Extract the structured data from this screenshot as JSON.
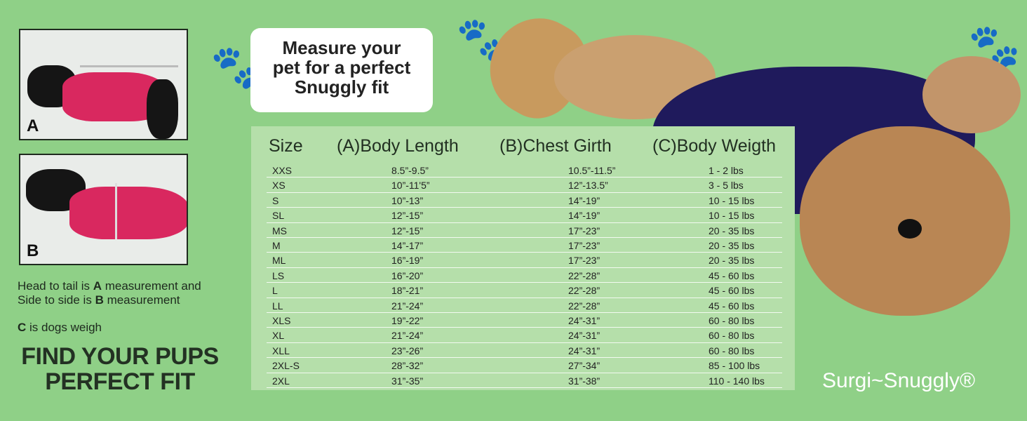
{
  "photos": [
    {
      "label": "A"
    },
    {
      "label": "B"
    }
  ],
  "instructions": {
    "line1_pre": "Head to tail is ",
    "line1_bold": "A",
    "line1_post": " measurement and",
    "line2_pre": "Side to side is ",
    "line2_bold": "B",
    "line2_post": " measurement",
    "line3_bold": "C",
    "line3_post": " is dogs weigh"
  },
  "headline": [
    "FIND YOUR PUPS",
    "PERFECT FIT"
  ],
  "bubble": [
    "Measure your",
    "pet for a perfect",
    "Snuggly fit"
  ],
  "table": {
    "headers": [
      "Size",
      "(A)Body Length",
      "(B)Chest Girth",
      "(C)Body Weigth"
    ],
    "rows": [
      [
        "XXS",
        "8.5”-9.5”",
        "10.5”-11.5”",
        "1 - 2 lbs"
      ],
      [
        "XS",
        "10”-11'5”",
        "12”-13.5”",
        "3 - 5 lbs"
      ],
      [
        "S",
        "10”-13”",
        "14”-19”",
        "10 - 15 lbs"
      ],
      [
        "SL",
        "12”-15”",
        "14”-19”",
        "10 - 15 lbs"
      ],
      [
        "MS",
        "12”-15”",
        "17”-23”",
        "20 - 35 lbs"
      ],
      [
        "M",
        "14”-17”",
        "17”-23”",
        "20 - 35 lbs"
      ],
      [
        "ML",
        "16”-19”",
        "17”-23”",
        "20 - 35 lbs"
      ],
      [
        "LS",
        "16”-20”",
        "22”-28”",
        "45 - 60 lbs"
      ],
      [
        "L",
        "18”-21”",
        "22”-28”",
        "45 - 60 lbs"
      ],
      [
        "LL",
        "21”-24”",
        "22”-28”",
        "45 - 60 lbs"
      ],
      [
        "XLS",
        "19”-22”",
        "24”-31”",
        "60 - 80 lbs"
      ],
      [
        "XL",
        "21”-24”",
        "24”-31”",
        "60 - 80 lbs"
      ],
      [
        "XLL",
        "23”-26”",
        "24”-31”",
        "60 - 80 lbs"
      ],
      [
        "2XL-S",
        "28”-32”",
        "27”-34”",
        "85 - 100 lbs"
      ],
      [
        "2XL",
        "31”-35”",
        "31”-38”",
        "110 - 140 lbs"
      ]
    ]
  },
  "brand": "Surgi~Snuggly®",
  "colors": {
    "background": "#8fd087",
    "table": "#b5dfaa",
    "coat_pink": "#d9285f",
    "coat_navy": "#1f1a5c"
  }
}
